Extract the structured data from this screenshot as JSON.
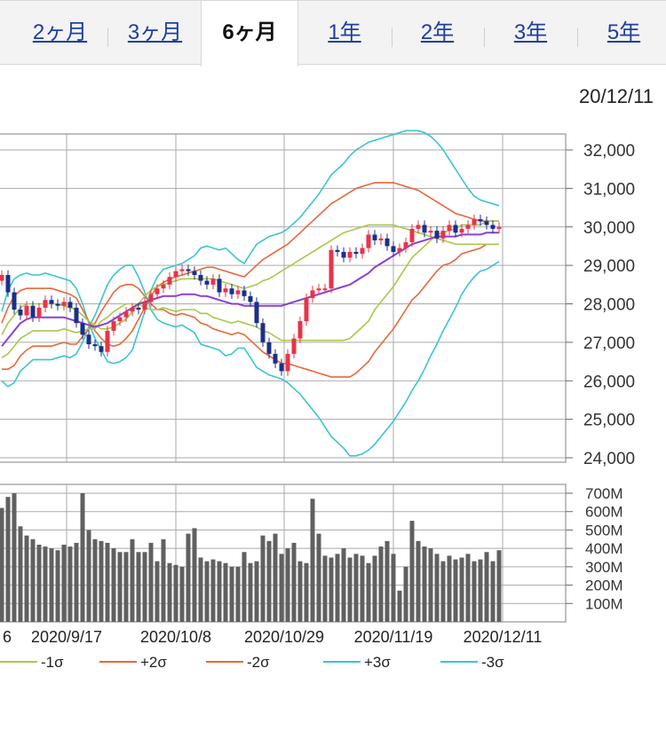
{
  "tabs": [
    {
      "label": "2ヶ月",
      "active": false
    },
    {
      "label": "3ヶ月",
      "active": false
    },
    {
      "label": "6ヶ月",
      "active": true
    },
    {
      "label": "1年",
      "active": false
    },
    {
      "label": "2年",
      "active": false
    },
    {
      "label": "3年",
      "active": false
    },
    {
      "label": "5年",
      "active": false
    }
  ],
  "date": "20/12/11",
  "colors": {
    "up": "#e8334a",
    "down": "#1a2f8a",
    "ma": "#8a3fd6",
    "sigma1": "#a8c84a",
    "sigma2": "#e8683a",
    "sigma3": "#3cc4d0",
    "volume": "#606060",
    "grid": "#aaaaaa"
  },
  "chart_data": [
    {
      "type": "candlestick",
      "ylim": [
        24000,
        32000
      ],
      "ytick_labels": [
        "32,000",
        "31,000",
        "30,000",
        "29,000",
        "28,000",
        "27,000",
        "26,000",
        "25,000",
        "24,000"
      ],
      "x_labels": [
        "6",
        "2020/9/17",
        "2020/10/8",
        "2020/10/29",
        "2020/11/19",
        "2020/12/11"
      ],
      "close": [
        28750,
        28300,
        27850,
        27700,
        27950,
        27650,
        27900,
        28100,
        28000,
        27950,
        28050,
        27900,
        27500,
        27200,
        26950,
        26900,
        26750,
        27300,
        27550,
        27650,
        27800,
        27900,
        27850,
        28050,
        28250,
        28400,
        28500,
        28700,
        28850,
        28900,
        28850,
        28750,
        28600,
        28500,
        28650,
        28300,
        28400,
        28250,
        28350,
        28200,
        28050,
        27500,
        27000,
        26700,
        26450,
        26250,
        26700,
        27100,
        27550,
        28150,
        28350,
        28400,
        28400,
        29400,
        29350,
        29200,
        29350,
        29300,
        29450,
        29800,
        29650,
        29700,
        29500,
        29350,
        29450,
        29600,
        29950,
        30050,
        29850,
        29900,
        29700,
        29900,
        30050,
        29850,
        29950,
        30050,
        30200,
        30150,
        30050,
        29950,
        30000
      ],
      "upper3": [
        27800,
        28350,
        28650,
        28750,
        28800,
        28750,
        28750,
        28800,
        28750,
        28700,
        28650,
        28600,
        28400,
        28000,
        27500,
        27100,
        26800,
        26500,
        26450,
        26500,
        26600,
        26800,
        27300,
        27800,
        28350,
        28700,
        28900,
        28950,
        29000,
        29050,
        29150,
        29250,
        29450,
        29500,
        29450,
        29400,
        29450,
        29300,
        29150,
        29050,
        29300,
        29550,
        29650,
        29750,
        29800,
        29850,
        29950,
        30100,
        30250,
        30450,
        30650,
        30850,
        31100,
        31350,
        31500,
        31650,
        31850,
        32000,
        32100,
        32200,
        32250,
        32300,
        32350,
        32400,
        32450,
        32500,
        32500,
        32500,
        32450,
        32350,
        32200,
        32000,
        31750,
        31500,
        31250,
        31000,
        30800,
        30700,
        30650,
        30600,
        30550
      ],
      "upper2": [
        27500,
        27900,
        28200,
        28350,
        28400,
        28400,
        28400,
        28400,
        28400,
        28350,
        28300,
        28250,
        28150,
        27850,
        27550,
        27300,
        27100,
        26950,
        26900,
        26950,
        27100,
        27300,
        27600,
        27900,
        28200,
        28450,
        28550,
        28650,
        28700,
        28750,
        28800,
        28850,
        28900,
        28950,
        28950,
        28900,
        28850,
        28800,
        28750,
        28700,
        28850,
        29000,
        29150,
        29250,
        29350,
        29450,
        29550,
        29700,
        29850,
        30000,
        30150,
        30300,
        30450,
        30600,
        30700,
        30800,
        30900,
        31000,
        31050,
        31100,
        31150,
        31150,
        31150,
        31150,
        31100,
        31050,
        31000,
        30950,
        30850,
        30750,
        30650,
        30550,
        30450,
        30350,
        30300,
        30250,
        30200,
        30150,
        30150,
        30150,
        30150
      ],
      "upper1": [
        27200,
        27500,
        27700,
        27900,
        28000,
        28000,
        28000,
        28000,
        28000,
        28000,
        27950,
        27900,
        27850,
        27700,
        27550,
        27450,
        27350,
        27350,
        27400,
        27500,
        27600,
        27800,
        28000,
        28200,
        28350,
        28450,
        28500,
        28550,
        28600,
        28650,
        28650,
        28650,
        28650,
        28650,
        28650,
        28600,
        28550,
        28500,
        28450,
        28400,
        28450,
        28500,
        28600,
        28650,
        28750,
        28850,
        28950,
        29050,
        29150,
        29250,
        29350,
        29450,
        29550,
        29650,
        29750,
        29850,
        29900,
        29950,
        30000,
        30050,
        30050,
        30050,
        30050,
        30050,
        30000,
        29950,
        29900,
        29850,
        29800,
        29750,
        29700,
        29650,
        29600,
        29550,
        29550,
        29550,
        29550,
        29550,
        29550,
        29550,
        29550
      ],
      "ma": [
        26900,
        27100,
        27300,
        27500,
        27600,
        27650,
        27650,
        27650,
        27650,
        27650,
        27650,
        27600,
        27550,
        27500,
        27450,
        27400,
        27450,
        27500,
        27600,
        27700,
        27800,
        27900,
        28000,
        28050,
        28100,
        28150,
        28200,
        28200,
        28200,
        28250,
        28250,
        28250,
        28200,
        28200,
        28150,
        28100,
        28050,
        28000,
        28000,
        27950,
        27950,
        27950,
        27950,
        27950,
        27950,
        27950,
        28000,
        28050,
        28100,
        28150,
        28200,
        28250,
        28300,
        28350,
        28400,
        28450,
        28500,
        28600,
        28700,
        28800,
        28950,
        29050,
        29150,
        29250,
        29350,
        29450,
        29550,
        29600,
        29650,
        29700,
        29750,
        29750,
        29750,
        29750,
        29800,
        29800,
        29800,
        29800,
        29850,
        29850,
        29850
      ],
      "lower1": [
        26600,
        26700,
        26900,
        27100,
        27200,
        27300,
        27300,
        27300,
        27300,
        27300,
        27350,
        27300,
        27250,
        27300,
        27350,
        27350,
        27550,
        27650,
        27800,
        27900,
        28000,
        28000,
        28000,
        27900,
        27850,
        27850,
        27900,
        27850,
        27800,
        27850,
        27850,
        27850,
        27750,
        27750,
        27650,
        27600,
        27550,
        27500,
        27550,
        27500,
        27450,
        27400,
        27300,
        27250,
        27150,
        27050,
        27050,
        27050,
        27050,
        27050,
        27050,
        27050,
        27050,
        27050,
        27050,
        27050,
        27100,
        27250,
        27400,
        27550,
        27850,
        28050,
        28250,
        28450,
        28700,
        28950,
        29200,
        29350,
        29500,
        29650,
        29800,
        29850,
        29900,
        29950,
        30050,
        30050,
        30050,
        30050,
        30150,
        30150,
        30150
      ],
      "lower2": [
        26300,
        26300,
        26400,
        26650,
        26800,
        26900,
        26900,
        26900,
        26900,
        26950,
        27000,
        26950,
        26950,
        27150,
        27350,
        27500,
        27800,
        28050,
        28300,
        28450,
        28500,
        28500,
        28400,
        28200,
        28000,
        27850,
        27850,
        27750,
        27700,
        27750,
        27700,
        27650,
        27500,
        27450,
        27350,
        27300,
        27250,
        27200,
        27250,
        27200,
        27050,
        26900,
        26750,
        26650,
        26550,
        26450,
        26450,
        26400,
        26350,
        26300,
        26250,
        26200,
        26150,
        26100,
        26100,
        26100,
        26100,
        26200,
        26350,
        26500,
        26750,
        26950,
        27150,
        27350,
        27600,
        27850,
        28100,
        28250,
        28450,
        28650,
        28850,
        29000,
        29050,
        29150,
        29300,
        29350,
        29400,
        29450,
        29550,
        29550,
        29550
      ],
      "lower3": [
        26000,
        25850,
        25950,
        26250,
        26400,
        26550,
        26550,
        26550,
        26550,
        26600,
        26650,
        26600,
        26700,
        27000,
        27400,
        27700,
        28100,
        28500,
        28750,
        28900,
        29000,
        29000,
        28700,
        28300,
        27850,
        27600,
        27500,
        27450,
        27400,
        27450,
        27350,
        27250,
        26950,
        26900,
        26850,
        26800,
        26650,
        26700,
        26850,
        26850,
        26600,
        26350,
        26250,
        26150,
        26100,
        26050,
        25950,
        25800,
        25650,
        25450,
        25250,
        25050,
        24800,
        24550,
        24400,
        24250,
        24050,
        24050,
        24100,
        24200,
        24350,
        24550,
        24750,
        24950,
        25200,
        25450,
        25750,
        26000,
        26300,
        26650,
        26950,
        27300,
        27600,
        27900,
        28250,
        28500,
        28700,
        28850,
        28900,
        29000,
        29100
      ]
    },
    {
      "type": "bar",
      "ylim": [
        0,
        700
      ],
      "ytick_labels": [
        "700M",
        "600M",
        "500M",
        "400M",
        "300M",
        "200M",
        "100M"
      ],
      "values": [
        620,
        680,
        700,
        520,
        470,
        450,
        420,
        410,
        400,
        390,
        420,
        410,
        430,
        700,
        500,
        450,
        440,
        430,
        400,
        380,
        380,
        450,
        380,
        380,
        430,
        330,
        450,
        320,
        310,
        300,
        480,
        510,
        350,
        330,
        340,
        330,
        320,
        300,
        300,
        380,
        320,
        330,
        470,
        440,
        480,
        370,
        400,
        430,
        330,
        320,
        670,
        480,
        360,
        350,
        370,
        400,
        350,
        370,
        360,
        320,
        360,
        410,
        440,
        370,
        170,
        300,
        550,
        440,
        410,
        400,
        370,
        330,
        360,
        340,
        350,
        370,
        330,
        340,
        380,
        330,
        390
      ],
      "legend": [
        "-1σ",
        "+2σ",
        "-2σ",
        "+3σ",
        "-3σ"
      ]
    }
  ]
}
